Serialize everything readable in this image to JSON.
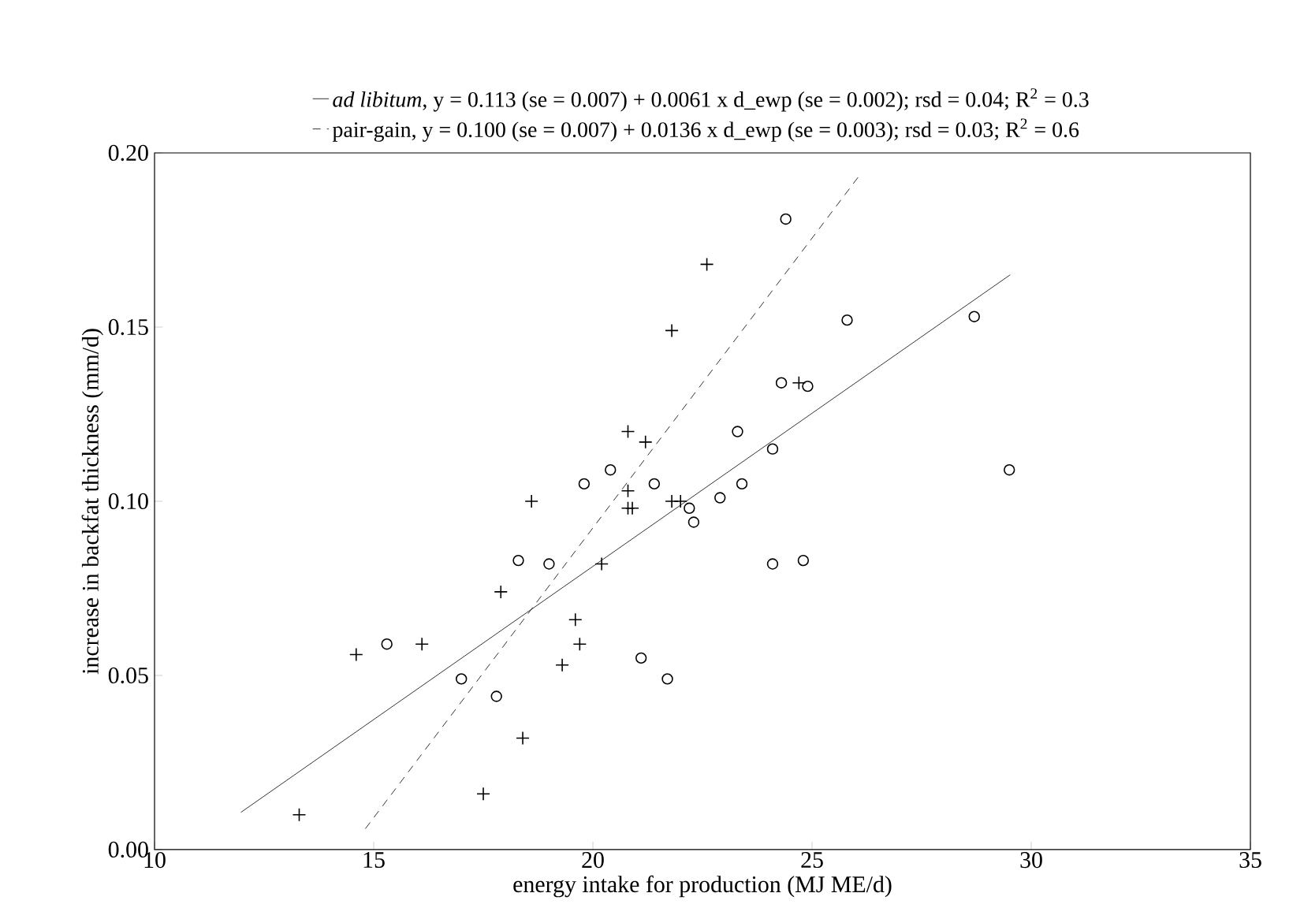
{
  "chart_data": {
    "type": "scatter",
    "xlabel": "energy intake for production (MJ ME/d)",
    "ylabel": "increase in backfat thickness (mm/d)",
    "xlim": [
      10,
      35
    ],
    "xticks": [
      10,
      15,
      20,
      25,
      30,
      35
    ],
    "ylim": [
      0,
      0.2
    ],
    "yticks": [
      {
        "value": 0,
        "label": "0.00"
      },
      {
        "value": 0.05,
        "label": "0.05"
      },
      {
        "value": 0.1,
        "label": "0.10"
      },
      {
        "value": 0.15,
        "label": "0.15"
      },
      {
        "value": 0.2,
        "label": "0.20"
      }
    ],
    "grid": false,
    "legend": "top",
    "series": [
      {
        "name": "*ad libitum*, y = 0.113 (se = 0.007) + 0.0061 x d_ewp (se = 0.002); rsd = 0.04; R$^{2}$ = 0.3",
        "type": "line",
        "line_style": "solid",
        "color": "#000000",
        "x": [
          11.97,
          29.52
        ],
        "values": [
          0.0107,
          0.165
        ]
      },
      {
        "name": "pair-gain, y = 0.100 (se = 0.007) + 0.0136 x d_ewp (se = 0.003); rsd = 0.03; R$^{2}$ = 0.6",
        "type": "line",
        "line_style": "dashed",
        "color": "#000000",
        "x": [
          14.81,
          26.11
        ],
        "values": [
          0.006,
          0.194
        ]
      },
      {
        "marker": "circle",
        "color": "#000000",
        "x": [
          15.3,
          17.0,
          17.8,
          18.3,
          19.0,
          19.8,
          20.4,
          21.1,
          21.4,
          21.7,
          22.2,
          22.3,
          22.9,
          23.3,
          23.4,
          24.1,
          24.1,
          24.3,
          24.4,
          24.8,
          24.9,
          25.8,
          28.7,
          29.5
        ],
        "values": [
          0.059,
          0.049,
          0.044,
          0.083,
          0.082,
          0.105,
          0.109,
          0.055,
          0.105,
          0.049,
          0.098,
          0.094,
          0.101,
          0.12,
          0.105,
          0.115,
          0.082,
          0.134,
          0.181,
          0.083,
          0.133,
          0.152,
          0.153,
          0.109
        ]
      },
      {
        "marker": "cross",
        "color": "#000000",
        "x": [
          13.3,
          14.6,
          16.1,
          17.5,
          17.9,
          18.4,
          18.6,
          19.3,
          19.6,
          19.7,
          20.2,
          20.8,
          20.8,
          20.8,
          20.9,
          21.2,
          21.8,
          21.8,
          22.0,
          22.6,
          24.7
        ],
        "values": [
          0.01,
          0.056,
          0.059,
          0.016,
          0.074,
          0.032,
          0.1,
          0.053,
          0.066,
          0.059,
          0.082,
          0.12,
          0.103,
          0.098,
          0.098,
          0.117,
          0.149,
          0.1,
          0.1,
          0.168,
          0.134
        ]
      }
    ]
  }
}
